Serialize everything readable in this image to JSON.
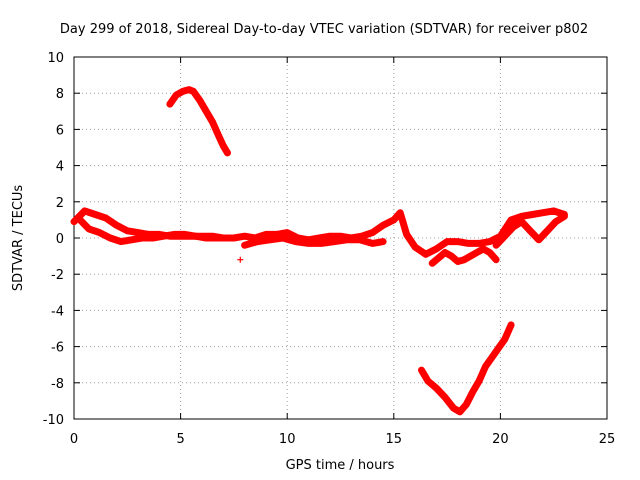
{
  "chart_data": {
    "type": "scatter",
    "title": "Day 299 of 2018, Sidereal Day-to-day VTEC variation (SDTVAR) for receiver p802",
    "xlabel": "GPS time / hours",
    "ylabel": "SDTVAR / TECUs",
    "xlim": [
      0,
      25
    ],
    "ylim": [
      -10,
      10
    ],
    "xticks": [
      0,
      5,
      10,
      15,
      20,
      25
    ],
    "yticks": [
      -10,
      -8,
      -6,
      -4,
      -2,
      0,
      2,
      4,
      6,
      8,
      10
    ],
    "grid": true,
    "legend": "none",
    "marker": "+",
    "color": "#ff0000",
    "series": [
      {
        "name": "arc-high",
        "x": [
          4.5,
          4.8,
          5.1,
          5.4,
          5.6,
          5.9,
          6.2,
          6.5,
          6.8,
          7.0,
          7.2
        ],
        "y": [
          7.4,
          7.9,
          8.1,
          8.2,
          8.1,
          7.6,
          7.0,
          6.4,
          5.6,
          5.1,
          4.7
        ]
      },
      {
        "name": "arc-low",
        "x": [
          16.3,
          16.6,
          17.0,
          17.4,
          17.8,
          18.1,
          18.4,
          18.7,
          19.0,
          19.3,
          19.6,
          19.9,
          20.2,
          20.5
        ],
        "y": [
          -7.3,
          -7.9,
          -8.3,
          -8.8,
          -9.4,
          -9.6,
          -9.2,
          -8.5,
          -7.9,
          -7.1,
          -6.6,
          -6.1,
          -5.6,
          -4.8
        ]
      },
      {
        "name": "band-1",
        "x": [
          0.0,
          0.5,
          1.0,
          1.5,
          2.0,
          2.5,
          3.0,
          3.5,
          4.0,
          4.5,
          5.0,
          5.5,
          6.0,
          6.5,
          7.0,
          7.5,
          8.0,
          8.5,
          9.0,
          9.5,
          10.0,
          10.5,
          11.0,
          11.5,
          12.0,
          12.5,
          13.0,
          13.5,
          14.0,
          14.5,
          15.0,
          15.3,
          15.6,
          16.0,
          16.5,
          17.0,
          17.5,
          18.0,
          18.5,
          19.0,
          19.5,
          20.0,
          20.5,
          21.0,
          21.5,
          22.0,
          22.5,
          23.0
        ],
        "y": [
          0.9,
          1.5,
          1.3,
          1.1,
          0.7,
          0.4,
          0.3,
          0.2,
          0.2,
          0.1,
          0.1,
          0.1,
          0.1,
          0.1,
          0.0,
          0.0,
          0.1,
          0.0,
          0.2,
          0.2,
          0.3,
          0.0,
          -0.1,
          0.0,
          0.1,
          0.1,
          0.0,
          0.1,
          0.3,
          0.7,
          1.0,
          1.4,
          0.2,
          -0.5,
          -0.9,
          -0.6,
          -0.2,
          -0.2,
          -0.3,
          -0.3,
          -0.2,
          0.1,
          1.0,
          1.2,
          1.3,
          1.4,
          1.5,
          1.3
        ]
      },
      {
        "name": "band-2",
        "x": [
          0.2,
          0.7,
          1.2,
          1.7,
          2.2,
          2.7,
          3.2,
          3.7,
          4.2,
          4.7,
          5.2,
          5.7,
          6.2,
          6.7,
          7.2
        ],
        "y": [
          1.1,
          0.5,
          0.3,
          0.0,
          -0.2,
          -0.1,
          0.0,
          0.0,
          0.1,
          0.2,
          0.2,
          0.1,
          0.0,
          0.0,
          0.0
        ]
      },
      {
        "name": "band-3",
        "x": [
          8.0,
          8.6,
          9.2,
          9.8,
          10.4,
          11.0,
          11.6,
          12.2,
          12.8,
          13.4,
          14.0,
          14.5
        ],
        "y": [
          -0.4,
          -0.2,
          -0.1,
          0.0,
          -0.2,
          -0.3,
          -0.3,
          -0.2,
          -0.1,
          -0.1,
          -0.3,
          -0.2
        ]
      },
      {
        "name": "band-4",
        "x": [
          16.8,
          17.1,
          17.4,
          17.7,
          18.0,
          18.3,
          18.6,
          18.9,
          19.2,
          19.5,
          19.8
        ],
        "y": [
          -1.4,
          -1.1,
          -0.8,
          -1.0,
          -1.3,
          -1.2,
          -1.0,
          -0.8,
          -0.6,
          -0.8,
          -1.2
        ]
      },
      {
        "name": "band-5",
        "x": [
          19.8,
          20.2,
          20.6,
          21.0,
          21.4,
          21.8,
          22.2,
          22.6,
          23.0
        ],
        "y": [
          -0.4,
          0.1,
          0.6,
          0.9,
          0.4,
          -0.1,
          0.4,
          0.9,
          1.2
        ]
      },
      {
        "name": "outlier",
        "x": [
          7.8
        ],
        "y": [
          -1.2
        ]
      }
    ]
  }
}
